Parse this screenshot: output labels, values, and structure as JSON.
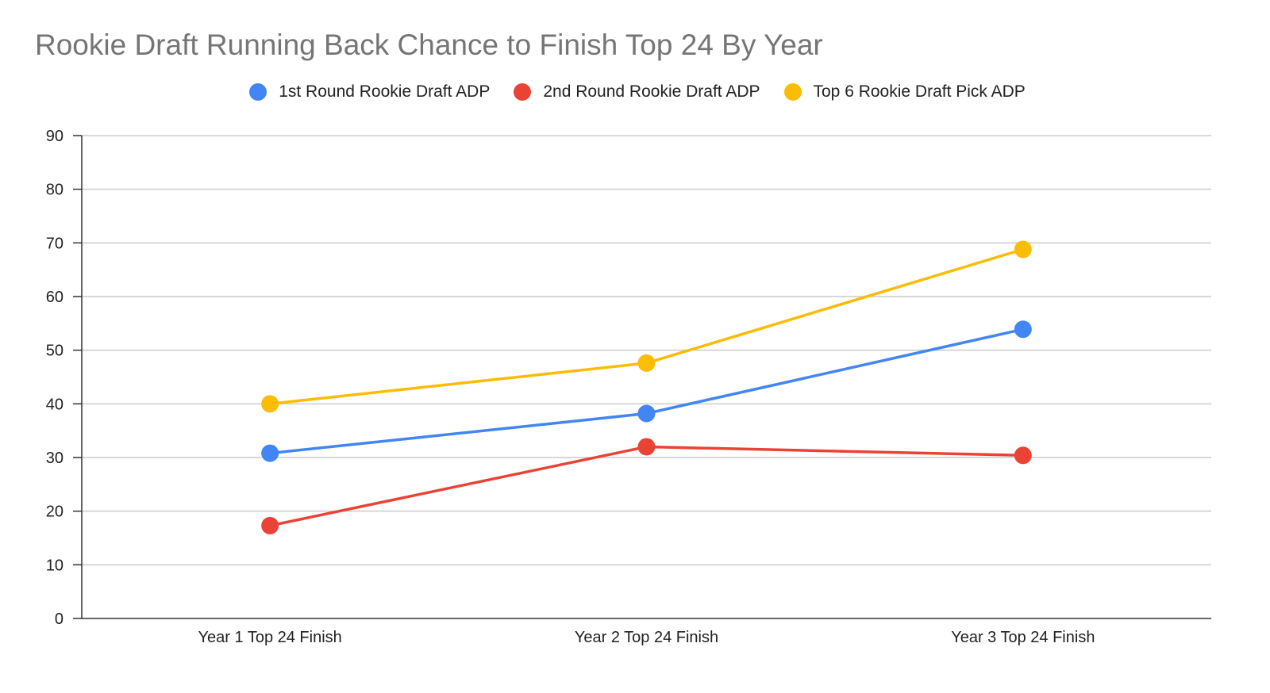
{
  "chart_data": {
    "type": "line",
    "title": "Rookie Draft Running Back Chance to Finish Top 24 By Year",
    "xlabel": "",
    "ylabel": "",
    "categories": [
      "Year 1 Top 24 Finish",
      "Year 2 Top 24 Finish",
      "Year 3 Top 24 Finish"
    ],
    "ylim": [
      0,
      90
    ],
    "yticks": [
      0,
      10,
      20,
      30,
      40,
      50,
      60,
      70,
      80,
      90
    ],
    "grid": true,
    "legend_position": "top",
    "series": [
      {
        "name": "1st Round Rookie Draft ADP",
        "color": "#4285F4",
        "values": [
          30.8,
          38.2,
          53.9
        ]
      },
      {
        "name": "2nd Round Rookie Draft ADP",
        "color": "#EA4335",
        "values": [
          17.3,
          32.0,
          30.4
        ]
      },
      {
        "name": "Top 6 Rookie Draft Pick ADP",
        "color": "#FBBC04",
        "values": [
          40.0,
          47.6,
          68.8
        ]
      }
    ]
  }
}
